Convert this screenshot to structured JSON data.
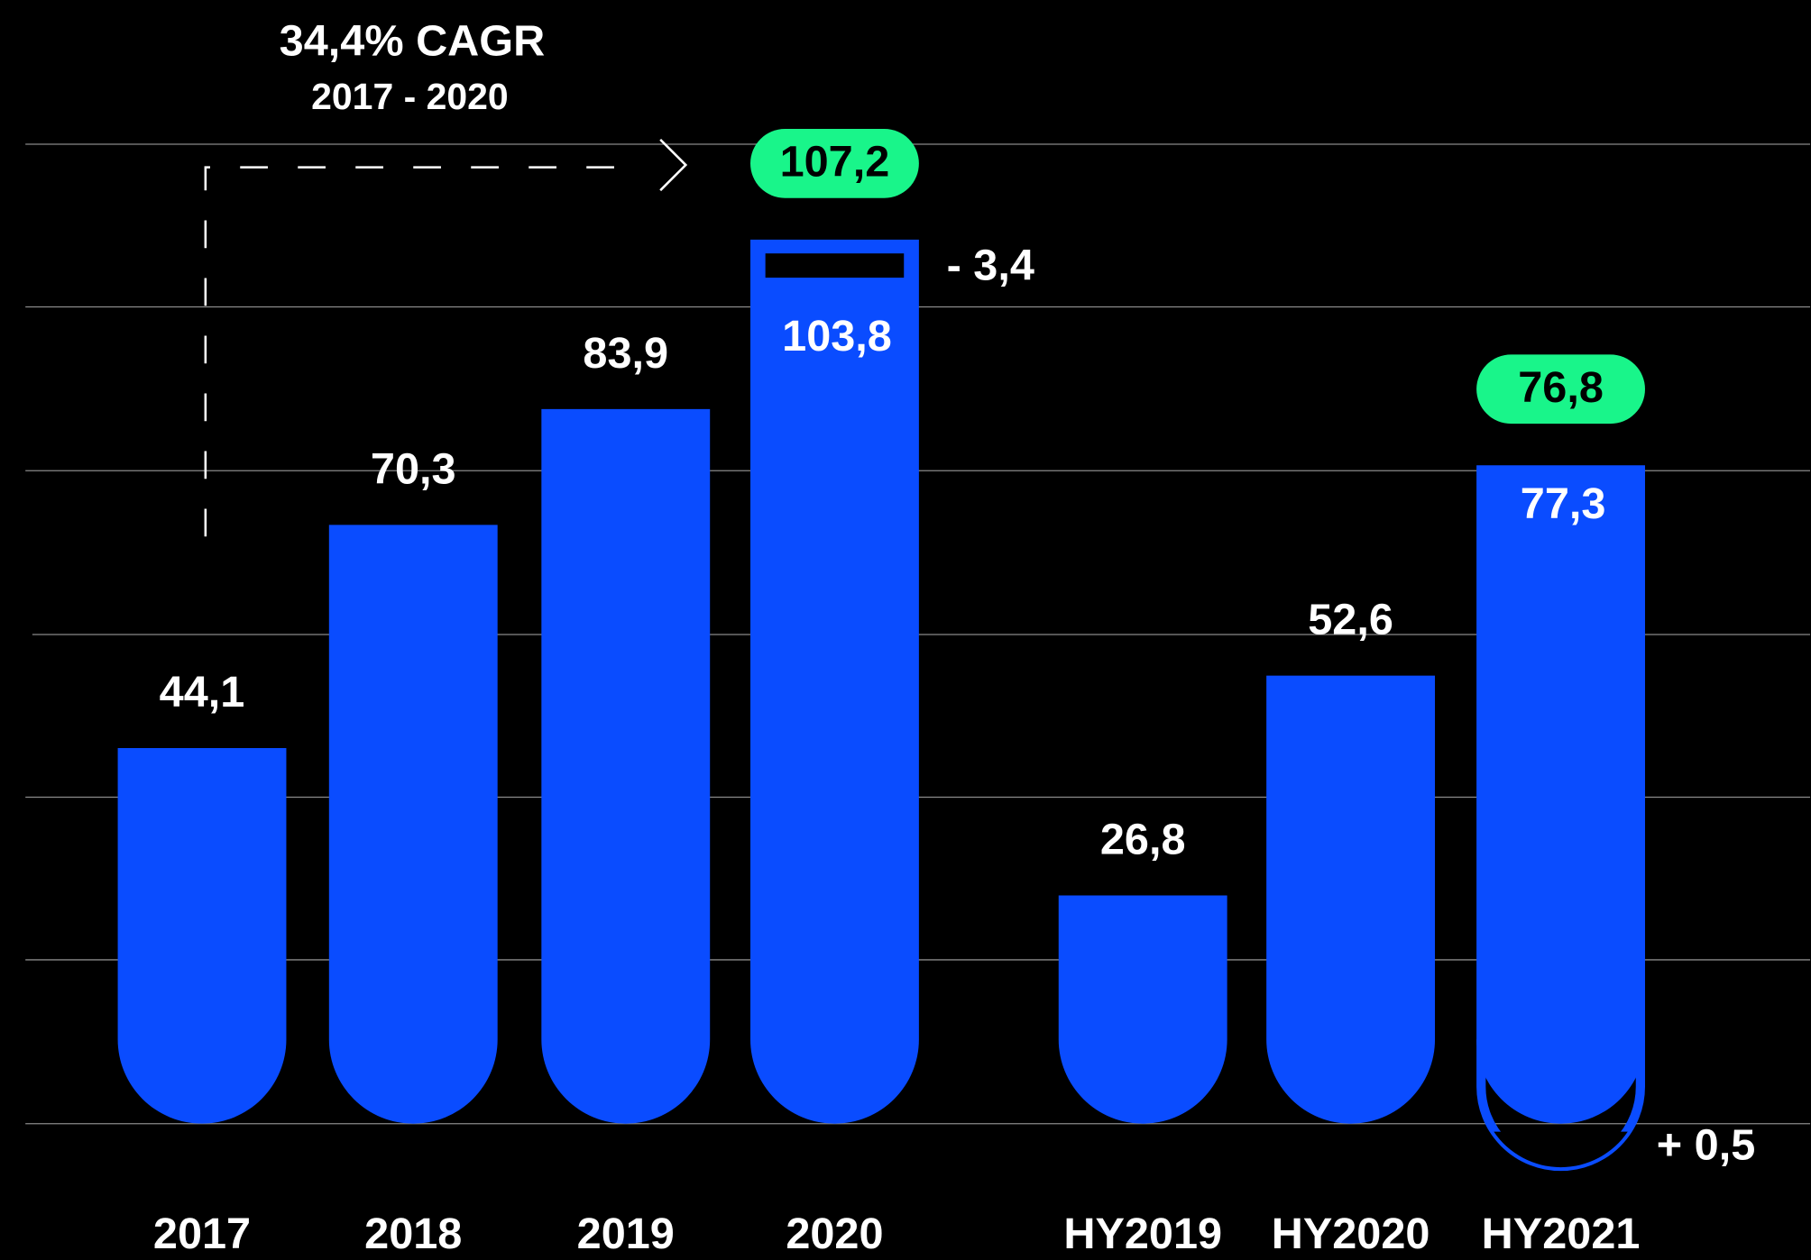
{
  "chart_data": {
    "type": "bar",
    "categories": [
      "2017",
      "2018",
      "2019",
      "2020",
      "HY2019",
      "HY2020",
      "HY2021"
    ],
    "values": [
      44.1,
      70.3,
      83.9,
      103.8,
      26.8,
      52.6,
      77.3
    ],
    "value_labels": [
      "44,1",
      "70,3",
      "83,9",
      "103,8",
      "26,8",
      "52,6",
      "77,3"
    ],
    "color": "#0a4cff",
    "highlight_color": "#19f58a",
    "totals": [
      {
        "category": "2020",
        "value": 107.2,
        "label": "107,2",
        "adjustment": -3.4,
        "adjustment_label": "- 3,4"
      },
      {
        "category": "HY2021",
        "value": 76.8,
        "label": "76,8",
        "adjustment": 0.5,
        "adjustment_label": "+ 0,5"
      }
    ],
    "annotation": {
      "title": "34,4% CAGR",
      "subtitle": "2017 - 2020"
    },
    "ylim": [
      0,
      115
    ]
  }
}
